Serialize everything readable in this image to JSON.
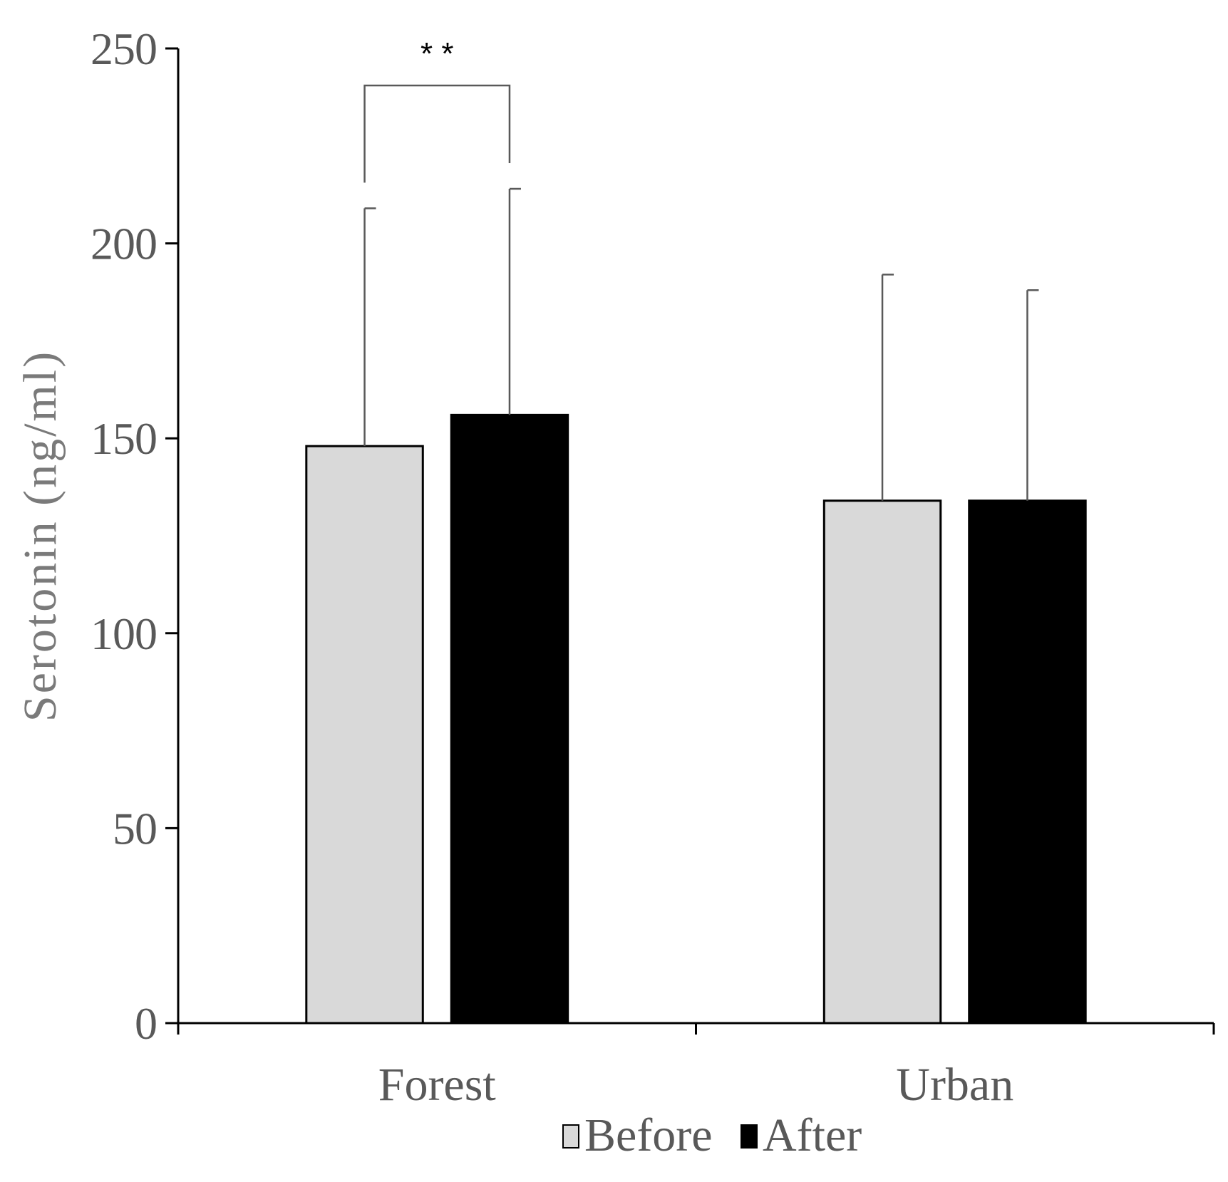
{
  "chart_data": {
    "type": "bar",
    "categories": [
      "Forest",
      "Urban"
    ],
    "series": [
      {
        "name": "Before",
        "values": [
          148,
          134
        ],
        "errors": [
          61,
          58
        ],
        "color": "#d9d9d9"
      },
      {
        "name": "After",
        "values": [
          156,
          134
        ],
        "errors": [
          58,
          54
        ],
        "color": "#000000"
      }
    ],
    "ylabel": "Serotonin (ng/ml)",
    "xlabel": "",
    "ylim": [
      0,
      250
    ],
    "yticks": [
      0,
      50,
      100,
      150,
      200,
      250
    ],
    "grid": false,
    "legend_position": "bottom",
    "annotations": [
      {
        "text": "* *",
        "category": "Forest",
        "between": [
          "Before",
          "After"
        ]
      }
    ]
  }
}
